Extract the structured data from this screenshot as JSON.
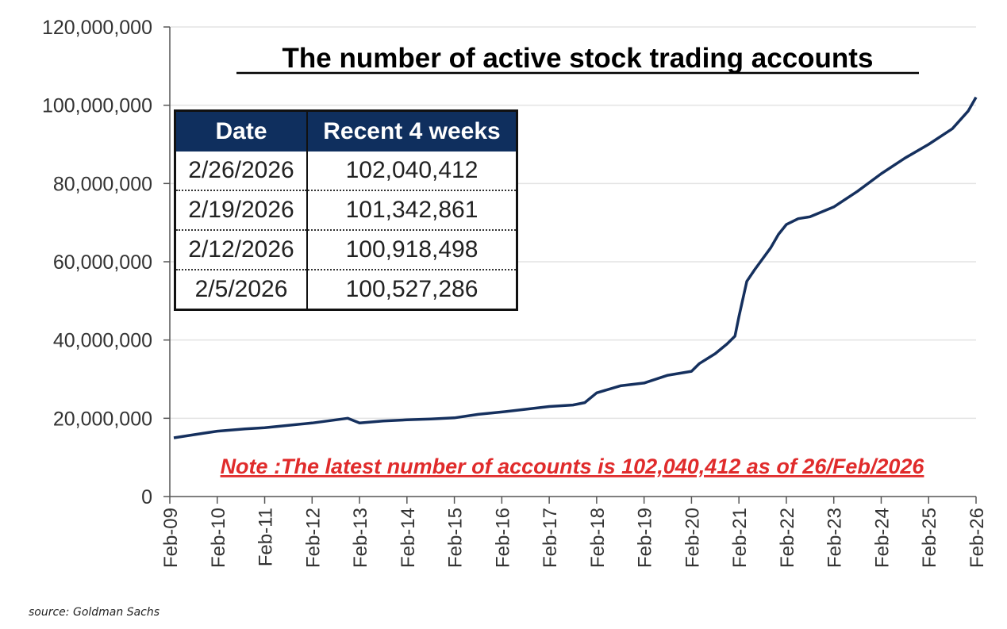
{
  "colors": {
    "line": "#15305e",
    "header_bg": "#0f2f5e",
    "note": "#e02b2b",
    "grid": "#e3e3e3",
    "axis": "#555555"
  },
  "chart_data": {
    "type": "line",
    "title": "The number of active stock trading accounts",
    "xlabel": "",
    "ylabel": "",
    "ylim": [
      0,
      120000000
    ],
    "xlim": [
      "2009-02",
      "2026-02"
    ],
    "yticks": [
      "0",
      "20,000,000",
      "40,000,000",
      "60,000,000",
      "80,000,000",
      "100,000,000",
      "120,000,000"
    ],
    "xticks": [
      "Feb-09",
      "Feb-10",
      "Feb-11",
      "Feb-12",
      "Feb-13",
      "Feb-14",
      "Feb-15",
      "Feb-16",
      "Feb-17",
      "Feb-18",
      "Feb-19",
      "Feb-20",
      "Feb-21",
      "Feb-22",
      "Feb-23",
      "Feb-24",
      "Feb-25",
      "Feb-26"
    ],
    "grid": true,
    "legend": "none",
    "x": [
      "2009-03",
      "2009-08",
      "2010-02",
      "2010-09",
      "2011-02",
      "2011-08",
      "2012-02",
      "2012-08",
      "2012-11",
      "2013-02",
      "2013-08",
      "2014-02",
      "2014-08",
      "2015-02",
      "2015-08",
      "2016-02",
      "2016-08",
      "2017-02",
      "2017-08",
      "2017-11",
      "2018-02",
      "2018-08",
      "2019-02",
      "2019-08",
      "2020-02",
      "2020-04",
      "2020-08",
      "2020-11",
      "2021-01",
      "2021-02",
      "2021-04",
      "2021-06",
      "2021-10",
      "2021-12",
      "2022-02",
      "2022-05",
      "2022-08",
      "2023-02",
      "2023-08",
      "2024-02",
      "2024-08",
      "2025-02",
      "2025-08",
      "2025-12",
      "2026-02"
    ],
    "values": [
      15000000,
      15800000,
      16700000,
      17300000,
      17600000,
      18200000,
      18800000,
      19600000,
      20000000,
      18800000,
      19300000,
      19600000,
      19800000,
      20100000,
      21000000,
      21600000,
      22300000,
      23000000,
      23400000,
      24000000,
      26500000,
      28300000,
      29000000,
      31000000,
      32000000,
      34000000,
      36500000,
      39000000,
      41000000,
      46000000,
      55000000,
      58000000,
      63500000,
      67000000,
      69500000,
      71000000,
      71500000,
      74000000,
      78000000,
      82500000,
      86500000,
      90000000,
      94000000,
      98500000,
      102040412
    ],
    "annotation": "Note :The latest number of accounts  is 102,040,412 as of 26/Feb/2026"
  },
  "table": {
    "headers": [
      "Date",
      "Recent 4 weeks"
    ],
    "rows": [
      [
        "2/26/2026",
        "102,040,412"
      ],
      [
        "2/19/2026",
        "101,342,861"
      ],
      [
        "2/12/2026",
        "100,918,498"
      ],
      [
        "2/5/2026",
        "100,527,286"
      ]
    ]
  },
  "source": "source: Goldman Sachs"
}
